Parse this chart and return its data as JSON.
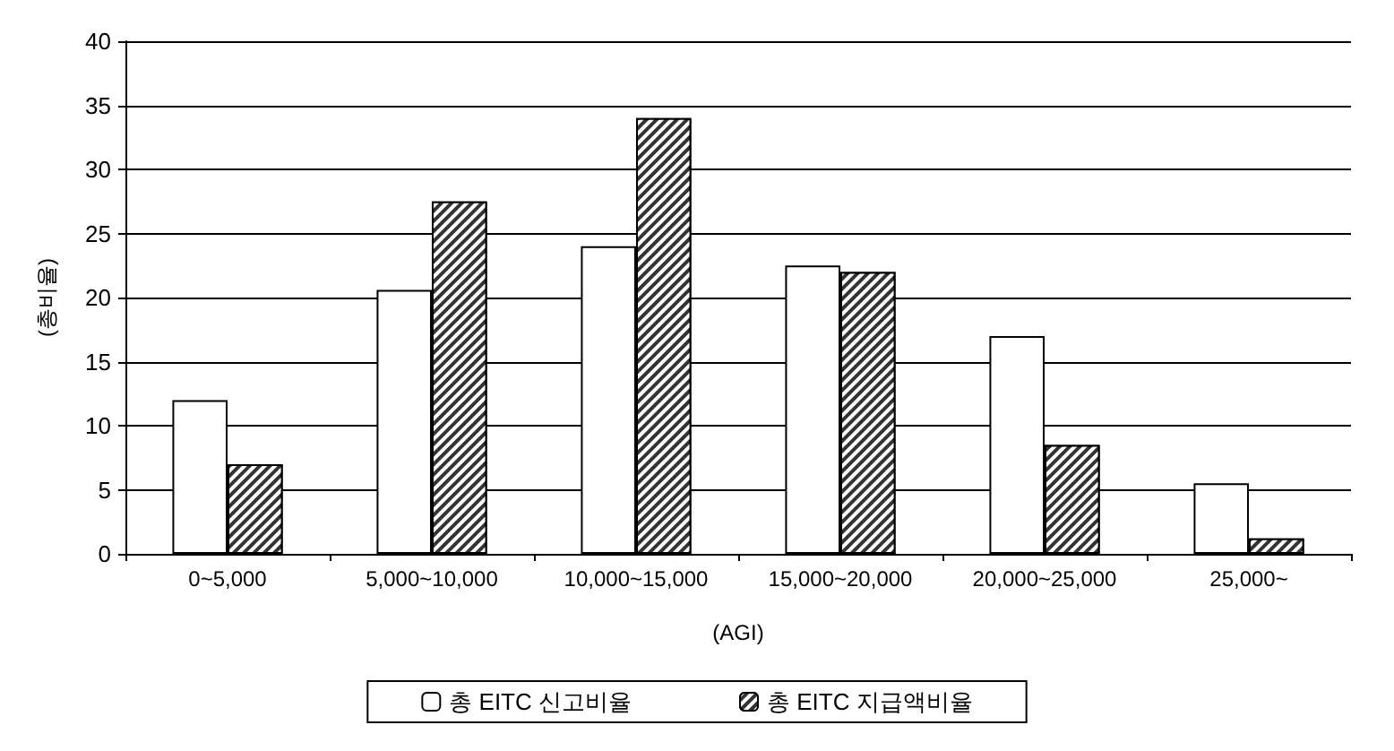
{
  "chart_data": {
    "type": "bar",
    "xlabel": "(AGI)",
    "ylabel": "(총비율)",
    "categories": [
      "0~5,000",
      "5,000~10,000",
      "10,000~15,000",
      "15,000~20,000",
      "20,000~25,000",
      "25,000~"
    ],
    "series": [
      {
        "name": "총 EITC 신고비율",
        "color": "#ffffff",
        "values": [
          12,
          20.6,
          24,
          22.5,
          17,
          5.5
        ]
      },
      {
        "name": "총 EITC 지급액비율",
        "color": "#333333",
        "values": [
          7,
          27.5,
          34,
          22,
          8.5,
          1.2
        ]
      }
    ],
    "ylim": [
      0,
      40
    ],
    "yticks": [
      0,
      5,
      10,
      15,
      20,
      25,
      30,
      35,
      40
    ],
    "grid": "y",
    "legend": "bottom"
  }
}
